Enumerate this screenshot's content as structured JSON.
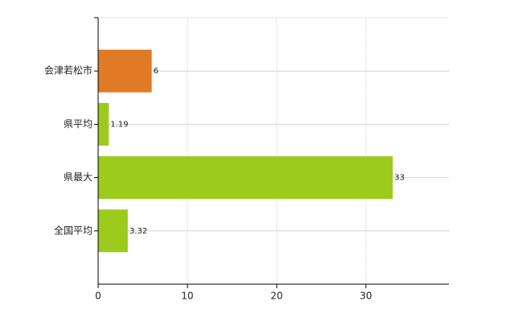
{
  "chart_data": {
    "type": "bar",
    "orientation": "horizontal",
    "categories": [
      "会津若松市",
      "県平均",
      "県最大",
      "全国平均"
    ],
    "values": [
      6,
      1.19,
      33,
      3.32
    ],
    "colors": [
      "#e07a24",
      "#9ccb1e",
      "#9ccb1e",
      "#9ccb1e"
    ],
    "xlim": [
      0,
      39.3
    ],
    "xticks": [
      0,
      10,
      20,
      30
    ],
    "grid": true
  }
}
